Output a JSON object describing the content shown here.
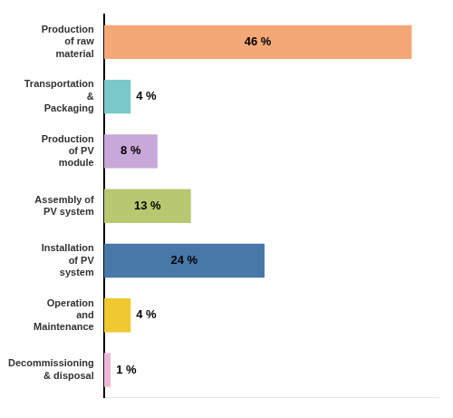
{
  "chart_data": {
    "type": "bar",
    "orientation": "horizontal",
    "categories": [
      "Production\nof raw\nmaterial",
      "Transportation\n&\nPackaging",
      "Production\nof PV\nmodule",
      "Assembly of\nPV system",
      "Installation\nof PV\nsystem",
      "Operation\nand\nMaintenance",
      "Decommissioning\n& disposal"
    ],
    "values": [
      46,
      4,
      8,
      13,
      24,
      4,
      1
    ],
    "value_labels": [
      "46 %",
      "4 %",
      "8 %",
      "13 %",
      "24 %",
      "4 %",
      "1 %"
    ],
    "colors": [
      "#F4A878",
      "#7BC8C8",
      "#C8A8D8",
      "#B8C870",
      "#4878A8",
      "#F0C830",
      "#F0B8D8"
    ],
    "xlim": [
      0,
      50
    ],
    "data_labels": true,
    "tick_labels": "y",
    "grid": false
  }
}
